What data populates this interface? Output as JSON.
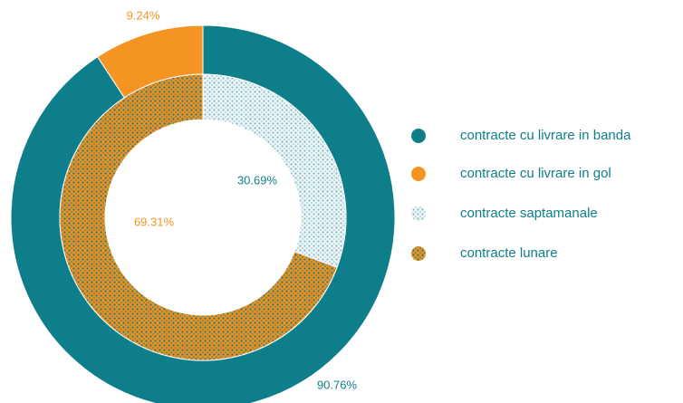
{
  "chart_data": {
    "type": "donut",
    "rings": [
      {
        "labels": [
          "contracte cu livrare in banda",
          "contracte cu livrare in gol"
        ],
        "values": [
          90.76,
          9.24
        ],
        "value_labels": [
          "90.76%",
          "9.24%"
        ],
        "colors": [
          "#0e7f8a",
          "#f39423"
        ]
      },
      {
        "labels": [
          "contracte saptamanale",
          "contracte lunare"
        ],
        "values": [
          30.69,
          69.31
        ],
        "value_labels": [
          "30.69%",
          "69.31%"
        ],
        "colors": [
          "#eef6f7",
          "#f0901e"
        ],
        "dot_colors": [
          "#7fbac3",
          "#0e7f8a"
        ]
      }
    ]
  }
}
